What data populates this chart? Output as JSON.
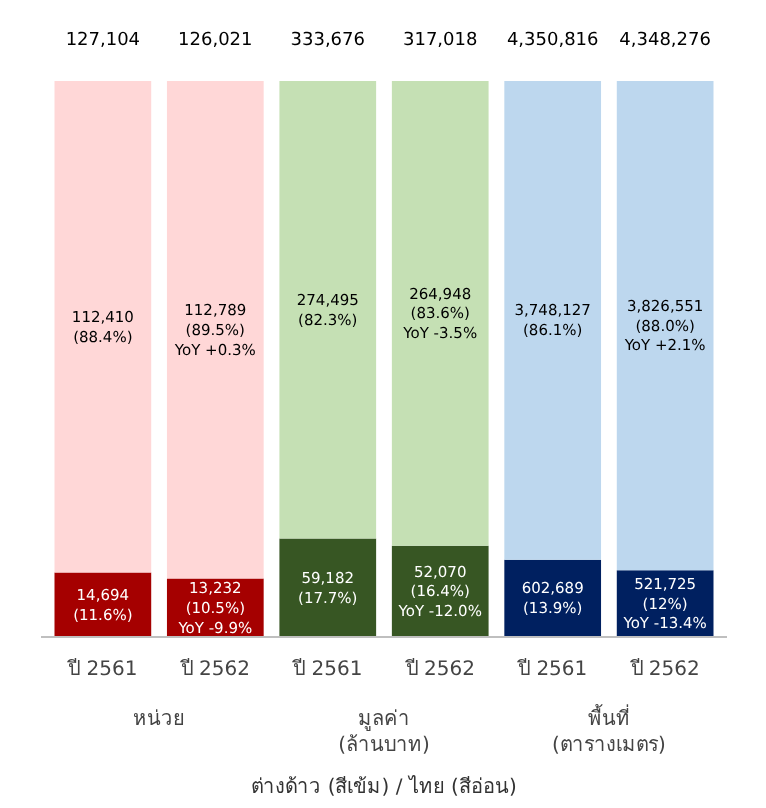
{
  "chart_data": {
    "type": "bar",
    "stacked": true,
    "ylim": [
      0,
      100
    ],
    "tick_labels": "x",
    "categories": [
      "ปี 2561",
      "ปี 2562",
      "ปี 2561",
      "ปี 2562",
      "ปี 2561",
      "ปี 2562"
    ],
    "series": [
      {
        "colors": [
          "#a50000",
          "#a50000",
          "#375623",
          "#375623",
          "#002060",
          "#002060"
        ],
        "values": [
          11.6,
          10.5,
          17.7,
          16.4,
          13.9,
          12
        ],
        "value_labels": [
          "14,694\n(11.6%)",
          "13,232\n(10.5%)\nYoY -9.9%",
          "59,182\n(17.7%)",
          "52,070\n(16.4%)\nYoY -12.0%",
          "602,689\n(13.9%)",
          "521,725\n(12%)\nYoY -13.4%"
        ]
      },
      {
        "colors": [
          "#ffd7d7",
          "#ffd7d7",
          "#c5e0b4",
          "#c5e0b4",
          "#bdd7ee",
          "#bdd7ee"
        ],
        "values": [
          88.4,
          89.5,
          82.3,
          83.6,
          86.1,
          88.0
        ],
        "value_labels": [
          "112,410\n(88.4%)",
          "112,789\n(89.5%)\nYoY +0.3%",
          "274,495\n(82.3%)",
          "264,948\n(83.6%)\nYoY -3.5%",
          "3,748,127\n(86.1%)",
          "3,826,551\n(88.0%)\nYoY +2.1%"
        ]
      }
    ],
    "annotations": [
      "127,104",
      "126,021",
      "333,676",
      "317,018",
      "4,350,816",
      "4,348,276",
      "หน่วย",
      "มูลค่า\n(ล้านบาท)",
      "พื้นที่\n(ตารางเมตร)",
      "ต่างด้าว (สีเข้ม) / ไทย (สีอ่อน)"
    ]
  }
}
